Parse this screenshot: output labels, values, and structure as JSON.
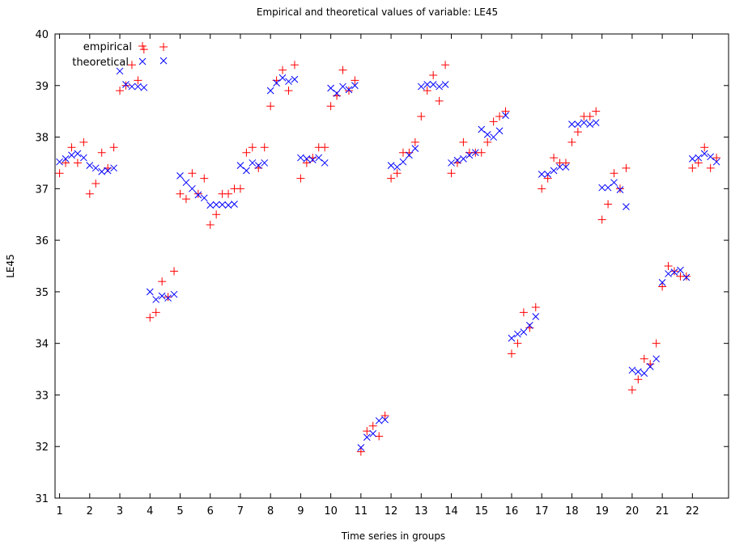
{
  "chart_data": {
    "type": "scatter",
    "title": "Empirical and theoretical values of variable: LE45",
    "xlabel": "Time series in groups",
    "ylabel": "LE45",
    "ylim": [
      31,
      40
    ],
    "yticks": [
      31,
      32,
      33,
      34,
      35,
      36,
      37,
      38,
      39,
      40
    ],
    "xlim": [
      0.85,
      23.2
    ],
    "xticks": [
      1,
      2,
      3,
      4,
      5,
      6,
      7,
      8,
      9,
      10,
      11,
      12,
      13,
      14,
      15,
      16,
      17,
      18,
      19,
      20,
      21,
      22
    ],
    "grid": false,
    "legend_position": "top-left",
    "series": [
      {
        "name": "empirical",
        "marker": "plus",
        "color": "#ff0000",
        "points": [
          [
            1.0,
            37.3
          ],
          [
            1.2,
            37.5
          ],
          [
            1.4,
            37.8
          ],
          [
            1.6,
            37.5
          ],
          [
            1.8,
            37.9
          ],
          [
            2.0,
            36.9
          ],
          [
            2.2,
            37.1
          ],
          [
            2.4,
            37.7
          ],
          [
            2.6,
            37.4
          ],
          [
            2.8,
            37.8
          ],
          [
            3.0,
            38.9
          ],
          [
            3.2,
            39.0
          ],
          [
            3.4,
            39.4
          ],
          [
            3.6,
            39.1
          ],
          [
            3.8,
            39.7
          ],
          [
            4.0,
            34.5
          ],
          [
            4.2,
            34.6
          ],
          [
            4.4,
            35.2
          ],
          [
            4.6,
            34.9
          ],
          [
            4.8,
            35.4
          ],
          [
            4.45,
            39.75
          ],
          [
            5.0,
            36.9
          ],
          [
            5.2,
            36.8
          ],
          [
            5.4,
            37.3
          ],
          [
            5.6,
            36.9
          ],
          [
            5.8,
            37.2
          ],
          [
            6.0,
            36.3
          ],
          [
            6.2,
            36.5
          ],
          [
            6.4,
            36.9
          ],
          [
            6.6,
            36.9
          ],
          [
            6.8,
            37.0
          ],
          [
            7.0,
            37.0
          ],
          [
            7.2,
            37.7
          ],
          [
            7.4,
            37.8
          ],
          [
            7.6,
            37.4
          ],
          [
            7.8,
            37.8
          ],
          [
            8.0,
            38.6
          ],
          [
            8.2,
            39.1
          ],
          [
            8.4,
            39.3
          ],
          [
            8.6,
            38.9
          ],
          [
            8.8,
            39.4
          ],
          [
            9.0,
            37.2
          ],
          [
            9.2,
            37.5
          ],
          [
            9.4,
            37.6
          ],
          [
            9.6,
            37.8
          ],
          [
            9.8,
            37.8
          ],
          [
            10.0,
            38.6
          ],
          [
            10.2,
            38.8
          ],
          [
            10.4,
            39.3
          ],
          [
            10.6,
            38.9
          ],
          [
            10.8,
            39.1
          ],
          [
            11.0,
            31.9
          ],
          [
            11.2,
            32.3
          ],
          [
            11.4,
            32.4
          ],
          [
            11.6,
            32.2
          ],
          [
            11.8,
            32.6
          ],
          [
            12.0,
            37.2
          ],
          [
            12.2,
            37.3
          ],
          [
            12.4,
            37.7
          ],
          [
            12.6,
            37.7
          ],
          [
            12.8,
            37.9
          ],
          [
            13.0,
            38.4
          ],
          [
            13.2,
            38.9
          ],
          [
            13.4,
            39.2
          ],
          [
            13.6,
            38.7
          ],
          [
            13.8,
            39.4
          ],
          [
            14.0,
            37.3
          ],
          [
            14.2,
            37.5
          ],
          [
            14.4,
            37.9
          ],
          [
            14.6,
            37.7
          ],
          [
            14.8,
            37.7
          ],
          [
            15.0,
            37.7
          ],
          [
            15.2,
            37.9
          ],
          [
            15.4,
            38.3
          ],
          [
            15.6,
            38.4
          ],
          [
            15.8,
            38.5
          ],
          [
            16.0,
            33.8
          ],
          [
            16.2,
            34.0
          ],
          [
            16.4,
            34.6
          ],
          [
            16.6,
            34.3
          ],
          [
            16.8,
            34.7
          ],
          [
            17.0,
            37.0
          ],
          [
            17.2,
            37.2
          ],
          [
            17.4,
            37.6
          ],
          [
            17.6,
            37.5
          ],
          [
            17.8,
            37.5
          ],
          [
            18.0,
            37.9
          ],
          [
            18.2,
            38.1
          ],
          [
            18.4,
            38.4
          ],
          [
            18.6,
            38.4
          ],
          [
            18.8,
            38.5
          ],
          [
            19.0,
            36.4
          ],
          [
            19.2,
            36.7
          ],
          [
            19.4,
            37.3
          ],
          [
            19.6,
            37.0
          ],
          [
            19.8,
            37.4
          ],
          [
            20.0,
            33.1
          ],
          [
            20.2,
            33.3
          ],
          [
            20.4,
            33.7
          ],
          [
            20.6,
            33.6
          ],
          [
            20.8,
            34.0
          ],
          [
            21.0,
            35.1
          ],
          [
            21.2,
            35.5
          ],
          [
            21.4,
            35.4
          ],
          [
            21.6,
            35.3
          ],
          [
            21.8,
            35.3
          ],
          [
            22.0,
            37.4
          ],
          [
            22.2,
            37.5
          ],
          [
            22.4,
            37.8
          ],
          [
            22.6,
            37.4
          ],
          [
            22.8,
            37.6
          ]
        ]
      },
      {
        "name": "theoretical",
        "marker": "cross",
        "color": "#0000ff",
        "points": [
          [
            1.0,
            37.52
          ],
          [
            1.2,
            37.58
          ],
          [
            1.4,
            37.65
          ],
          [
            1.6,
            37.68
          ],
          [
            1.8,
            37.6
          ],
          [
            2.0,
            37.45
          ],
          [
            2.2,
            37.4
          ],
          [
            2.4,
            37.33
          ],
          [
            2.6,
            37.35
          ],
          [
            2.8,
            37.4
          ],
          [
            3.0,
            39.28
          ],
          [
            3.2,
            39.02
          ],
          [
            3.4,
            38.98
          ],
          [
            3.6,
            38.98
          ],
          [
            3.8,
            38.96
          ],
          [
            4.0,
            35.0
          ],
          [
            4.2,
            34.85
          ],
          [
            4.4,
            34.92
          ],
          [
            4.6,
            34.88
          ],
          [
            4.8,
            34.95
          ],
          [
            4.45,
            39.48
          ],
          [
            5.0,
            37.25
          ],
          [
            5.2,
            37.12
          ],
          [
            5.4,
            37.0
          ],
          [
            5.6,
            36.88
          ],
          [
            5.8,
            36.82
          ],
          [
            6.0,
            36.68
          ],
          [
            6.2,
            36.69
          ],
          [
            6.4,
            36.69
          ],
          [
            6.6,
            36.68
          ],
          [
            6.8,
            36.7
          ],
          [
            7.0,
            37.45
          ],
          [
            7.2,
            37.35
          ],
          [
            7.4,
            37.5
          ],
          [
            7.6,
            37.45
          ],
          [
            7.8,
            37.5
          ],
          [
            8.0,
            38.9
          ],
          [
            8.2,
            39.05
          ],
          [
            8.4,
            39.15
          ],
          [
            8.6,
            39.08
          ],
          [
            8.8,
            39.12
          ],
          [
            9.0,
            37.6
          ],
          [
            9.2,
            37.58
          ],
          [
            9.4,
            37.56
          ],
          [
            9.6,
            37.6
          ],
          [
            9.8,
            37.5
          ],
          [
            10.0,
            38.95
          ],
          [
            10.2,
            38.85
          ],
          [
            10.4,
            38.98
          ],
          [
            10.6,
            38.92
          ],
          [
            10.8,
            39.0
          ],
          [
            11.0,
            31.98
          ],
          [
            11.2,
            32.18
          ],
          [
            11.4,
            32.25
          ],
          [
            11.6,
            32.5
          ],
          [
            11.8,
            32.52
          ],
          [
            12.0,
            37.45
          ],
          [
            12.2,
            37.42
          ],
          [
            12.4,
            37.52
          ],
          [
            12.6,
            37.65
          ],
          [
            12.8,
            37.78
          ],
          [
            13.0,
            38.98
          ],
          [
            13.2,
            39.02
          ],
          [
            13.4,
            39.02
          ],
          [
            13.6,
            38.98
          ],
          [
            13.8,
            39.02
          ],
          [
            14.0,
            37.5
          ],
          [
            14.2,
            37.55
          ],
          [
            14.4,
            37.58
          ],
          [
            14.6,
            37.65
          ],
          [
            14.8,
            37.7
          ],
          [
            15.0,
            38.15
          ],
          [
            15.2,
            38.05
          ],
          [
            15.4,
            38.0
          ],
          [
            15.6,
            38.12
          ],
          [
            15.8,
            38.42
          ],
          [
            16.0,
            34.1
          ],
          [
            16.2,
            34.18
          ],
          [
            16.4,
            34.22
          ],
          [
            16.6,
            34.35
          ],
          [
            16.8,
            34.52
          ],
          [
            17.0,
            37.28
          ],
          [
            17.2,
            37.28
          ],
          [
            17.4,
            37.35
          ],
          [
            17.6,
            37.42
          ],
          [
            17.8,
            37.42
          ],
          [
            18.0,
            38.25
          ],
          [
            18.2,
            38.25
          ],
          [
            18.4,
            38.28
          ],
          [
            18.6,
            38.25
          ],
          [
            18.8,
            38.28
          ],
          [
            19.0,
            37.02
          ],
          [
            19.2,
            37.02
          ],
          [
            19.4,
            37.12
          ],
          [
            19.6,
            36.98
          ],
          [
            19.8,
            36.65
          ],
          [
            20.0,
            33.48
          ],
          [
            20.2,
            33.45
          ],
          [
            20.4,
            33.42
          ],
          [
            20.6,
            33.55
          ],
          [
            20.8,
            33.7
          ],
          [
            21.0,
            35.18
          ],
          [
            21.2,
            35.35
          ],
          [
            21.4,
            35.38
          ],
          [
            21.6,
            35.42
          ],
          [
            21.8,
            35.28
          ],
          [
            22.0,
            37.58
          ],
          [
            22.2,
            37.6
          ],
          [
            22.4,
            37.68
          ],
          [
            22.6,
            37.62
          ],
          [
            22.8,
            37.52
          ]
        ]
      }
    ]
  }
}
